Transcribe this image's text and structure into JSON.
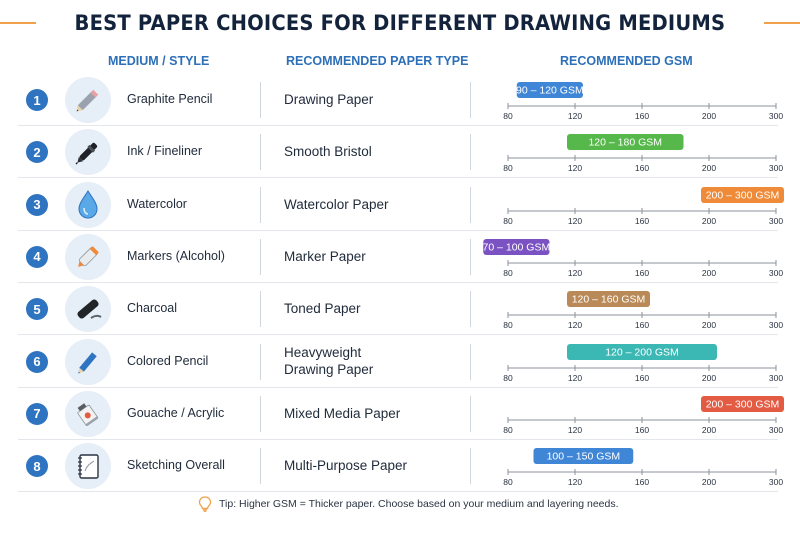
{
  "title": "BEST PAPER CHOICES FOR DIFFERENT DRAWING MEDIUMS",
  "headers": {
    "medium": "MEDIUM / STYLE",
    "paper": "RECOMMENDED PAPER TYPE",
    "gsm": "RECOMMENDED GSM"
  },
  "tip": "Tip: Higher GSM = Thicker paper. Choose based on your medium and layering needs.",
  "colors": {
    "accent": "#2f74c0",
    "decoration": "#f0a24a"
  },
  "rows": [
    {
      "num": "1",
      "medium": "Graphite Pencil",
      "icon": "pencil-icon",
      "paper": [
        "Drawing Paper"
      ],
      "bar_label": "90 – 120 GSM"
    },
    {
      "num": "2",
      "medium": "Ink / Fineliner",
      "icon": "pen-icon",
      "paper": [
        "Smooth Bristol"
      ],
      "bar_label": "120 – 180 GSM"
    },
    {
      "num": "3",
      "medium": "Watercolor",
      "icon": "water-drop-icon",
      "paper": [
        "Watercolor Paper"
      ],
      "bar_label": "200 – 300 GSM"
    },
    {
      "num": "4",
      "medium": "Markers (Alcohol)",
      "icon": "marker-icon",
      "paper": [
        "Marker Paper"
      ],
      "bar_label": "70 – 100 GSM"
    },
    {
      "num": "5",
      "medium": "Charcoal",
      "icon": "charcoal-icon",
      "paper": [
        "Toned Paper"
      ],
      "bar_label": "120 – 160 GSM"
    },
    {
      "num": "6",
      "medium": "Colored Pencil",
      "icon": "colored-pencil-icon",
      "paper": [
        "Heavyweight",
        "Drawing Paper"
      ],
      "bar_label": "120 – 200 GSM"
    },
    {
      "num": "7",
      "medium": "Gouache / Acrylic",
      "icon": "paint-tube-icon",
      "paper": [
        "Mixed Media Paper"
      ],
      "bar_label": "200 – 300 GSM"
    },
    {
      "num": "8",
      "medium": "Sketching Overall",
      "icon": "sketchbook-icon",
      "paper": [
        "Multi-Purpose Paper"
      ],
      "bar_label": "100 – 150 GSM"
    }
  ],
  "chart_data": {
    "type": "bar",
    "orientation": "horizontal-range",
    "categories": [
      "Graphite Pencil",
      "Ink / Fineliner",
      "Watercolor",
      "Markers (Alcohol)",
      "Charcoal",
      "Colored Pencil",
      "Gouache / Acrylic",
      "Sketching Overall"
    ],
    "ranges": [
      [
        90,
        120
      ],
      [
        120,
        180
      ],
      [
        200,
        300
      ],
      [
        70,
        100
      ],
      [
        120,
        160
      ],
      [
        120,
        200
      ],
      [
        200,
        300
      ],
      [
        100,
        150
      ]
    ],
    "colors": [
      "#3f86d6",
      "#56b84a",
      "#ee8a38",
      "#7b52c2",
      "#b98a58",
      "#3bb8b4",
      "#e45b44",
      "#3f86d6"
    ],
    "xticks": [
      80,
      120,
      160,
      200,
      300
    ],
    "xlim": [
      80,
      300
    ],
    "xlabel": "",
    "ylabel": ""
  }
}
